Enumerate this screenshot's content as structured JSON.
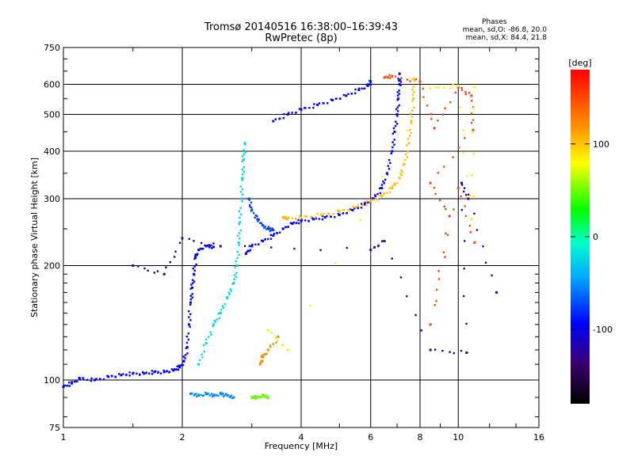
{
  "title": {
    "line1": "Tromsø 20140516 16:38:00–16:39:43",
    "line2": "RwPretec (8p)"
  },
  "phases": {
    "title": "Phases",
    "o_label": "mean, sd,O:",
    "o_values": "-86.8, 20.0",
    "x_label": "mean, sd,X:",
    "x_values": "84.4, 21.8"
  },
  "colorbar": {
    "unit": "[deg]",
    "ticks": [
      {
        "value": 100,
        "label": "100"
      },
      {
        "value": 0,
        "label": "0"
      },
      {
        "value": -100,
        "label": "-100"
      }
    ],
    "range": [
      -180,
      180
    ]
  },
  "chart_data": {
    "type": "scatter",
    "title": "Tromsø 20140516 16:38:00–16:39:43",
    "subtitle": "RwPretec (8p)",
    "xlabel": "Frequency [MHz]",
    "ylabel": "Stationary phase Virtual Height [km]",
    "xscale": "log2",
    "yscale": "log",
    "xlim": [
      1,
      16
    ],
    "ylim": [
      75,
      750
    ],
    "x_ticks": [
      {
        "v": 1,
        "label": "1"
      },
      {
        "v": 2,
        "label": "2"
      },
      {
        "v": 4,
        "label": "4"
      },
      {
        "v": 6,
        "label": "6"
      },
      {
        "v": 8,
        "label": "8"
      },
      {
        "v": 10,
        "label": "10"
      },
      {
        "v": 16,
        "label": "16"
      }
    ],
    "y_ticks": [
      {
        "v": 75,
        "label": "75"
      },
      {
        "v": 100,
        "label": "100"
      },
      {
        "v": 200,
        "label": "200"
      },
      {
        "v": 300,
        "label": "300"
      },
      {
        "v": 400,
        "label": "400"
      },
      {
        "v": 500,
        "label": "500"
      },
      {
        "v": 600,
        "label": "600"
      },
      {
        "v": 750,
        "label": "750"
      }
    ],
    "grid": true,
    "color_encoding": "phase [deg]",
    "series": [
      {
        "phase": -100,
        "points": [
          [
            1.0,
            96
          ],
          [
            1.05,
            98
          ],
          [
            1.1,
            101
          ],
          [
            1.2,
            100
          ],
          [
            1.3,
            102
          ],
          [
            1.4,
            103
          ],
          [
            1.5,
            104
          ],
          [
            1.6,
            104
          ],
          [
            1.7,
            105
          ],
          [
            1.8,
            105
          ],
          [
            1.9,
            106
          ],
          [
            1.97,
            108
          ],
          [
            2.02,
            112
          ],
          [
            2.06,
            122
          ],
          [
            2.08,
            140
          ],
          [
            2.1,
            160
          ],
          [
            2.12,
            175
          ],
          [
            2.14,
            190
          ],
          [
            2.16,
            210
          ],
          [
            2.2,
            220
          ],
          [
            2.3,
            225
          ],
          [
            2.4,
            224
          ]
        ]
      },
      {
        "phase": -60,
        "points": [
          [
            2.1,
            92
          ],
          [
            2.2,
            91
          ],
          [
            2.3,
            92
          ],
          [
            2.4,
            91
          ],
          [
            2.5,
            92
          ],
          [
            2.6,
            91
          ],
          [
            2.7,
            90
          ]
        ]
      },
      {
        "phase": -30,
        "points": [
          [
            2.2,
            110
          ],
          [
            2.3,
            125
          ],
          [
            2.4,
            140
          ],
          [
            2.5,
            150
          ],
          [
            2.6,
            165
          ],
          [
            2.7,
            180
          ],
          [
            2.75,
            200
          ],
          [
            2.78,
            230
          ],
          [
            2.8,
            260
          ],
          [
            2.82,
            300
          ],
          [
            2.84,
            340
          ],
          [
            2.86,
            380
          ],
          [
            2.88,
            420
          ]
        ]
      },
      {
        "phase": 40,
        "points": [
          [
            3.0,
            90
          ],
          [
            3.1,
            90
          ],
          [
            3.2,
            91
          ],
          [
            3.3,
            90
          ]
        ]
      },
      {
        "phase": -100,
        "points": [
          [
            2.9,
            215
          ],
          [
            3.0,
            225
          ],
          [
            3.2,
            232
          ],
          [
            3.4,
            240
          ],
          [
            3.6,
            250
          ],
          [
            3.8,
            258
          ],
          [
            4.0,
            262
          ],
          [
            4.3,
            265
          ],
          [
            4.6,
            268
          ],
          [
            5.0,
            272
          ],
          [
            5.4,
            280
          ],
          [
            5.8,
            290
          ],
          [
            6.1,
            300
          ],
          [
            6.4,
            320
          ],
          [
            6.6,
            350
          ],
          [
            6.8,
            400
          ],
          [
            6.9,
            450
          ],
          [
            7.0,
            500
          ],
          [
            7.05,
            550
          ],
          [
            7.1,
            600
          ],
          [
            7.1,
            640
          ]
        ]
      },
      {
        "phase": -80,
        "points": [
          [
            2.95,
            300
          ],
          [
            3.0,
            280
          ],
          [
            3.1,
            265
          ],
          [
            3.2,
            255
          ],
          [
            3.3,
            250
          ],
          [
            3.4,
            248
          ]
        ]
      },
      {
        "phase": 100,
        "points": [
          [
            3.6,
            268
          ],
          [
            3.7,
            266
          ],
          [
            4.0,
            268
          ],
          [
            4.5,
            272
          ],
          [
            5.0,
            278
          ],
          [
            5.5,
            285
          ],
          [
            6.0,
            295
          ],
          [
            6.4,
            305
          ],
          [
            6.8,
            320
          ],
          [
            7.1,
            340
          ],
          [
            7.3,
            370
          ],
          [
            7.5,
            420
          ],
          [
            7.6,
            480
          ],
          [
            7.7,
            550
          ],
          [
            7.7,
            620
          ]
        ]
      },
      {
        "phase": -100,
        "points": [
          [
            3.4,
            480
          ],
          [
            3.7,
            500
          ],
          [
            4.0,
            515
          ],
          [
            4.4,
            530
          ],
          [
            4.8,
            545
          ],
          [
            5.2,
            560
          ],
          [
            5.6,
            580
          ],
          [
            5.9,
            595
          ],
          [
            6.0,
            610
          ]
        ]
      },
      {
        "phase": 120,
        "points": [
          [
            3.15,
            110
          ],
          [
            3.2,
            115
          ],
          [
            3.3,
            120
          ],
          [
            3.5,
            130
          ]
        ]
      },
      {
        "phase": 150,
        "points": [
          [
            6.5,
            625
          ],
          [
            6.8,
            630
          ],
          [
            8.0,
            610
          ],
          [
            8.7,
            460
          ],
          [
            10.0,
            590
          ],
          [
            10.8,
            560
          ],
          [
            10.9,
            455
          ],
          [
            8.5,
            330
          ],
          [
            9.5,
            270
          ],
          [
            8.5,
            140
          ],
          [
            10.0,
            320
          ],
          [
            11.0,
            230
          ]
        ]
      },
      {
        "phase": -130,
        "points": [
          [
            1.5,
            200
          ],
          [
            1.8,
            190
          ],
          [
            2.0,
            236
          ],
          [
            2.5,
            225
          ],
          [
            6.0,
            220
          ],
          [
            6.5,
            232
          ],
          [
            8.5,
            120
          ],
          [
            10.5,
            118
          ],
          [
            10.2,
            330
          ],
          [
            10.6,
            300
          ],
          [
            12.5,
            170
          ]
        ]
      },
      {
        "phase": 80,
        "points": [
          [
            3.3,
            135
          ],
          [
            3.7,
            120
          ],
          [
            8.5,
            585
          ],
          [
            10.0,
            595
          ],
          [
            10.8,
            265
          ],
          [
            11.0,
            590
          ]
        ]
      }
    ]
  }
}
